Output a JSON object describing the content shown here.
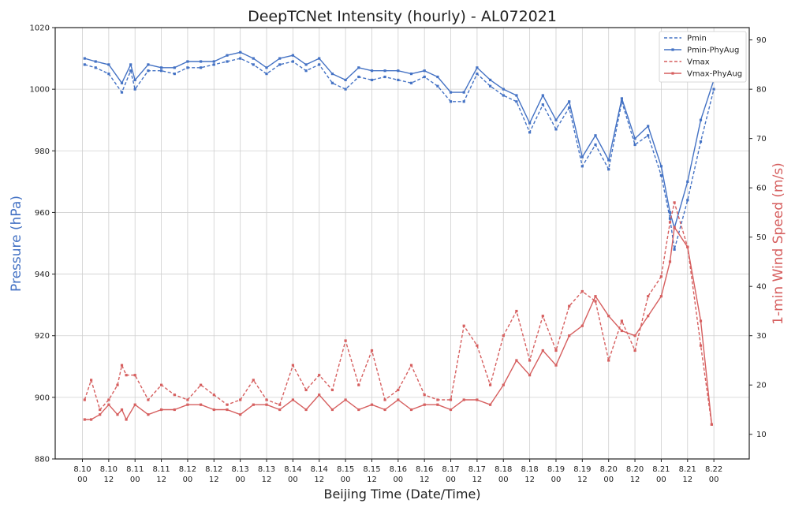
{
  "chart_data": {
    "type": "line",
    "title": "DeepTCNet Intensity (hourly) - AL072021",
    "xlabel": "Beijing Time (Date/Time)",
    "ylabel": "Pressure (hPa)",
    "y2label": "1-min Wind Speed (m/s)",
    "ylim": [
      880,
      1020
    ],
    "y2lim": [
      5,
      92.5
    ],
    "yticks": [
      880,
      900,
      920,
      940,
      960,
      980,
      1000,
      1020
    ],
    "y2ticks": [
      10,
      20,
      30,
      40,
      50,
      60,
      70,
      80,
      90
    ],
    "grid": true,
    "legend_position": "top-right",
    "colors": {
      "pressure": "#4472c4",
      "wind": "#d65f5f",
      "axis_left_label": "#4472c4",
      "axis_right_label": "#d65f5f"
    },
    "xtick_labels": [
      [
        "8.10",
        "00"
      ],
      [
        "8.10",
        "12"
      ],
      [
        "8.11",
        "00"
      ],
      [
        "8.11",
        "12"
      ],
      [
        "8.12",
        "00"
      ],
      [
        "8.12",
        "12"
      ],
      [
        "8.13",
        "00"
      ],
      [
        "8.13",
        "12"
      ],
      [
        "8.14",
        "00"
      ],
      [
        "8.14",
        "12"
      ],
      [
        "8.15",
        "00"
      ],
      [
        "8.15",
        "12"
      ],
      [
        "8.16",
        "00"
      ],
      [
        "8.16",
        "12"
      ],
      [
        "8.17",
        "00"
      ],
      [
        "8.17",
        "12"
      ],
      [
        "8.18",
        "00"
      ],
      [
        "8.18",
        "12"
      ],
      [
        "8.19",
        "00"
      ],
      [
        "8.19",
        "12"
      ],
      [
        "8.20",
        "00"
      ],
      [
        "8.20",
        "12"
      ],
      [
        "8.21",
        "00"
      ],
      [
        "8.21",
        "12"
      ],
      [
        "8.22",
        "00"
      ]
    ],
    "x_hours": [
      0,
      12,
      24,
      36,
      48,
      60,
      72,
      84,
      96,
      108,
      120,
      132,
      144,
      156,
      168,
      180,
      192,
      204,
      216,
      228,
      240,
      252,
      264,
      276,
      288
    ],
    "series": [
      {
        "name": "Pmin",
        "axis": "left",
        "style": "dashed",
        "color": "#4472c4",
        "x": [
          1,
          6,
          12,
          18,
          22,
          24,
          30,
          36,
          42,
          48,
          54,
          60,
          66,
          72,
          78,
          84,
          90,
          96,
          102,
          108,
          114,
          120,
          126,
          132,
          138,
          144,
          150,
          156,
          162,
          168,
          174,
          180,
          186,
          192,
          198,
          204,
          210,
          216,
          222,
          228,
          234,
          240,
          246,
          252,
          258,
          264,
          268,
          270,
          276,
          282,
          288
        ],
        "y": [
          1008,
          1007,
          1005,
          999,
          1006,
          1000,
          1006,
          1006,
          1005,
          1007,
          1007,
          1008,
          1009,
          1010,
          1008,
          1005,
          1008,
          1009,
          1006,
          1008,
          1002,
          1000,
          1004,
          1003,
          1004,
          1003,
          1002,
          1004,
          1001,
          996,
          996,
          1005,
          1001,
          998,
          996,
          986,
          995,
          987,
          994,
          975,
          982,
          974,
          996,
          982,
          985,
          972,
          958,
          948,
          964,
          983,
          1000
        ]
      },
      {
        "name": "Pmin-PhyAug",
        "axis": "left",
        "style": "solid",
        "color": "#4472c4",
        "x": [
          1,
          6,
          12,
          18,
          22,
          24,
          30,
          36,
          42,
          48,
          54,
          60,
          66,
          72,
          78,
          84,
          90,
          96,
          102,
          108,
          114,
          120,
          126,
          132,
          138,
          144,
          150,
          156,
          162,
          168,
          174,
          180,
          186,
          192,
          198,
          204,
          210,
          216,
          222,
          228,
          234,
          240,
          246,
          252,
          258,
          264,
          268,
          270,
          276,
          282,
          288
        ],
        "y": [
          1010,
          1009,
          1008,
          1002,
          1008,
          1003,
          1008,
          1007,
          1007,
          1009,
          1009,
          1009,
          1011,
          1012,
          1010,
          1007,
          1010,
          1011,
          1008,
          1010,
          1005,
          1003,
          1007,
          1006,
          1006,
          1006,
          1005,
          1006,
          1004,
          999,
          999,
          1007,
          1003,
          1000,
          998,
          989,
          998,
          990,
          996,
          978,
          985,
          977,
          997,
          984,
          988,
          975,
          960,
          955,
          970,
          990,
          1003
        ]
      },
      {
        "name": "Vmax",
        "axis": "right",
        "style": "dashed",
        "color": "#d65f5f",
        "x": [
          1,
          4,
          8,
          12,
          16,
          18,
          20,
          24,
          30,
          36,
          42,
          48,
          54,
          60,
          66,
          72,
          78,
          84,
          90,
          96,
          102,
          108,
          114,
          120,
          126,
          132,
          138,
          144,
          150,
          156,
          162,
          168,
          174,
          180,
          186,
          192,
          198,
          204,
          210,
          216,
          222,
          228,
          234,
          240,
          246,
          252,
          258,
          264,
          268,
          270,
          276,
          282,
          287
        ],
        "y": [
          17,
          21,
          15,
          17,
          20,
          24,
          22,
          22,
          17,
          20,
          18,
          17,
          20,
          18,
          16,
          17,
          21,
          17,
          16,
          24,
          19,
          22,
          19,
          29,
          20,
          27,
          17,
          19,
          24,
          18,
          17,
          17,
          32,
          28,
          20,
          30,
          35,
          25,
          34,
          27,
          36,
          39,
          37,
          25,
          33,
          27,
          38,
          42,
          53,
          57,
          48,
          28,
          12
        ]
      },
      {
        "name": "Vmax-PhyAug",
        "axis": "right",
        "style": "solid",
        "color": "#d65f5f",
        "x": [
          1,
          4,
          8,
          12,
          16,
          18,
          20,
          24,
          30,
          36,
          42,
          48,
          54,
          60,
          66,
          72,
          78,
          84,
          90,
          96,
          102,
          108,
          114,
          120,
          126,
          132,
          138,
          144,
          150,
          156,
          162,
          168,
          174,
          180,
          186,
          192,
          198,
          204,
          210,
          216,
          222,
          228,
          234,
          240,
          246,
          252,
          258,
          264,
          268,
          270,
          276,
          282,
          287
        ],
        "y": [
          13,
          13,
          14,
          16,
          14,
          15,
          13,
          16,
          14,
          15,
          15,
          16,
          16,
          15,
          15,
          14,
          16,
          16,
          15,
          17,
          15,
          18,
          15,
          17,
          15,
          16,
          15,
          17,
          15,
          16,
          16,
          15,
          17,
          17,
          16,
          20,
          25,
          22,
          27,
          24,
          30,
          32,
          38,
          34,
          31,
          30,
          34,
          38,
          45,
          52,
          48,
          33,
          12
        ]
      }
    ]
  }
}
